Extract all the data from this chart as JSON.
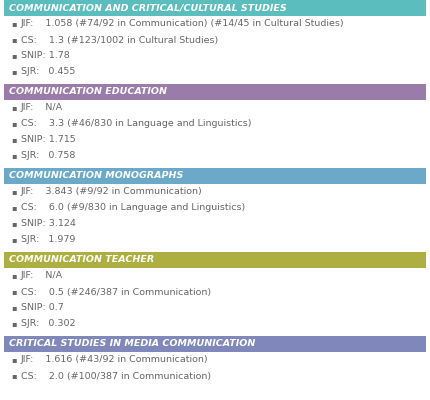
{
  "sections": [
    {
      "title": "COMMUNICATION AND CRITICAL/CULTURAL STUDIES",
      "header_color": "#5bbdbd",
      "items": [
        "JIF:    1.058 (#74/92 in Communication) (#14/45 in Cultural Studies)",
        "CS:    1.3 (#123/1002 in Cultural Studies)",
        "SNIP: 1.78",
        "SJR:   0.455"
      ]
    },
    {
      "title": "COMMUNICATION EDUCATION",
      "header_color": "#9b7baa",
      "items": [
        "JIF:    N/A",
        "CS:    3.3 (#46/830 in Language and Linguistics)",
        "SNIP: 1.715",
        "SJR:   0.758"
      ]
    },
    {
      "title": "COMMUNICATION MONOGRAPHS",
      "header_color": "#6aaac8",
      "items": [
        "JIF:    3.843 (#9/92 in Communication)",
        "CS:    6.0 (#9/830 in Language and Linguistics)",
        "SNIP: 3.124",
        "SJR:   1.979"
      ]
    },
    {
      "title": "COMMUNICATION TEACHER",
      "header_color": "#adb040",
      "items": [
        "JIF:    N/A",
        "CS:    0.5 (#246/387 in Communication)",
        "SNIP: 0.7",
        "SJR:   0.302"
      ]
    },
    {
      "title": "CRITICAL STUDIES IN MEDIA COMMUNICATION",
      "header_color": "#8088bb",
      "items": [
        "JIF:    1.616 (#43/92 in Communication)",
        "CS:    2.0 (#100/387 in Communication)"
      ]
    }
  ],
  "background_color": "#ffffff",
  "header_text_color": "#ffffff",
  "item_text_color": "#666666",
  "bullet": "▪",
  "header_fontsize": 6.8,
  "item_fontsize": 6.8
}
